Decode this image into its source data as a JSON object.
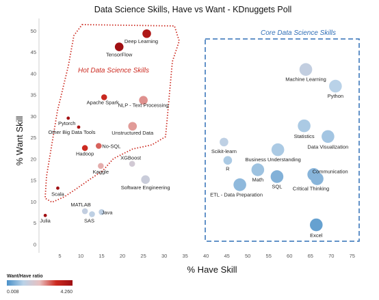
{
  "chart_data": {
    "type": "scatter",
    "title": "Data Science Skills, Have vs Want - KDnuggets Poll",
    "xlabel": "% Have Skill",
    "ylabel": "% Want Skill",
    "xlim": [
      0,
      77
    ],
    "ylim": [
      -1,
      52
    ],
    "x_ticks": [
      5,
      10,
      15,
      20,
      25,
      30,
      35,
      40,
      45,
      50,
      55,
      60,
      65,
      70,
      75
    ],
    "y_ticks": [
      0,
      5,
      10,
      15,
      20,
      25,
      30,
      35,
      40,
      45,
      50
    ],
    "grid": false,
    "size_legend": false,
    "points": [
      {
        "label": "Deep Learning",
        "x": 25.8,
        "y": 49.4,
        "ratio": 3.8,
        "size": "med"
      },
      {
        "label": "TensorFlow",
        "x": 19.2,
        "y": 46.3,
        "ratio": 4.2,
        "size": "med"
      },
      {
        "label": "Apache Spark",
        "x": 15.6,
        "y": 34.5,
        "ratio": 3.1,
        "size": "small"
      },
      {
        "label": "NLP - Text Processing",
        "x": 25.0,
        "y": 33.8,
        "ratio": 1.9,
        "size": "med"
      },
      {
        "label": "Pytorch",
        "x": 7.0,
        "y": 29.6,
        "ratio": 4.1,
        "size": "tiny"
      },
      {
        "label": "Other Big Data Tools",
        "x": 9.5,
        "y": 27.5,
        "ratio": 3.9,
        "size": "tiny"
      },
      {
        "label": "Unstructured Data",
        "x": 22.4,
        "y": 27.7,
        "ratio": 1.8,
        "size": "med"
      },
      {
        "label": "No-SQL",
        "x": 14.3,
        "y": 23.1,
        "ratio": 2.4,
        "size": "small"
      },
      {
        "label": "Hadoop",
        "x": 11.0,
        "y": 22.6,
        "ratio": 3.0,
        "size": "small"
      },
      {
        "label": "Kaggle",
        "x": 14.8,
        "y": 18.4,
        "ratio": 1.6,
        "size": "small"
      },
      {
        "label": "XGBoost",
        "x": 22.3,
        "y": 18.9,
        "ratio": 0.9,
        "size": "small"
      },
      {
        "label": "Software Engineering",
        "x": 25.5,
        "y": 15.2,
        "ratio": 0.75,
        "size": "med"
      },
      {
        "label": "Scala",
        "x": 4.5,
        "y": 13.2,
        "ratio": 4.2,
        "size": "tiny"
      },
      {
        "label": "Julia",
        "x": 1.5,
        "y": 6.8,
        "ratio": 4.2,
        "size": "tiny"
      },
      {
        "label": "MATLAB",
        "x": 11.0,
        "y": 7.8,
        "ratio": 0.6,
        "size": "small"
      },
      {
        "label": "SAS",
        "x": 12.7,
        "y": 7.1,
        "ratio": 0.5,
        "size": "small"
      },
      {
        "label": "Java",
        "x": 15.0,
        "y": 7.6,
        "ratio": 0.5,
        "size": "small"
      },
      {
        "label": "Machine Learning",
        "x": 63.9,
        "y": 41.0,
        "ratio": 0.6,
        "size": "big"
      },
      {
        "label": "Python",
        "x": 71.0,
        "y": 37.1,
        "ratio": 0.4,
        "size": "big"
      },
      {
        "label": "Statistics",
        "x": 63.5,
        "y": 27.8,
        "ratio": 0.35,
        "size": "big"
      },
      {
        "label": "Data Visualization",
        "x": 69.2,
        "y": 25.3,
        "ratio": 0.32,
        "size": "big"
      },
      {
        "label": "Scikit-learn",
        "x": 44.3,
        "y": 24.0,
        "ratio": 0.5,
        "size": "med"
      },
      {
        "label": "Business Understanding",
        "x": 57.2,
        "y": 22.2,
        "ratio": 0.35,
        "size": "big"
      },
      {
        "label": "R",
        "x": 45.2,
        "y": 19.7,
        "ratio": 0.35,
        "size": "med"
      },
      {
        "label": "Communication",
        "x": 65.8,
        "y": 16.4,
        "ratio": 0.22,
        "size": "big"
      },
      {
        "label": "Math",
        "x": 52.4,
        "y": 17.5,
        "ratio": 0.3,
        "size": "big"
      },
      {
        "label": "SQL",
        "x": 57.0,
        "y": 15.9,
        "ratio": 0.2,
        "size": "big"
      },
      {
        "label": "Critical Thinking",
        "x": 66.6,
        "y": 15.4,
        "ratio": 0.22,
        "size": "big"
      },
      {
        "label": "ETL - Data Preparation",
        "x": 48.1,
        "y": 14.0,
        "ratio": 0.25,
        "size": "big"
      },
      {
        "label": "Excel",
        "x": 66.4,
        "y": 4.6,
        "ratio": 0.1,
        "size": "big"
      }
    ],
    "annotations": {
      "hot_label": "Hot Data Science Skills",
      "hot_color": "#cc2a20",
      "core_label": "Core Data Science Skills",
      "core_color": "#2f6eb6"
    },
    "color_legend": {
      "title": "Want/Have ratio",
      "min": "0.008",
      "max": "4.260",
      "colors": [
        "#4a90c8",
        "#b9d2e8",
        "#e8c0c0",
        "#cc2a20",
        "#9e0e12"
      ]
    }
  }
}
